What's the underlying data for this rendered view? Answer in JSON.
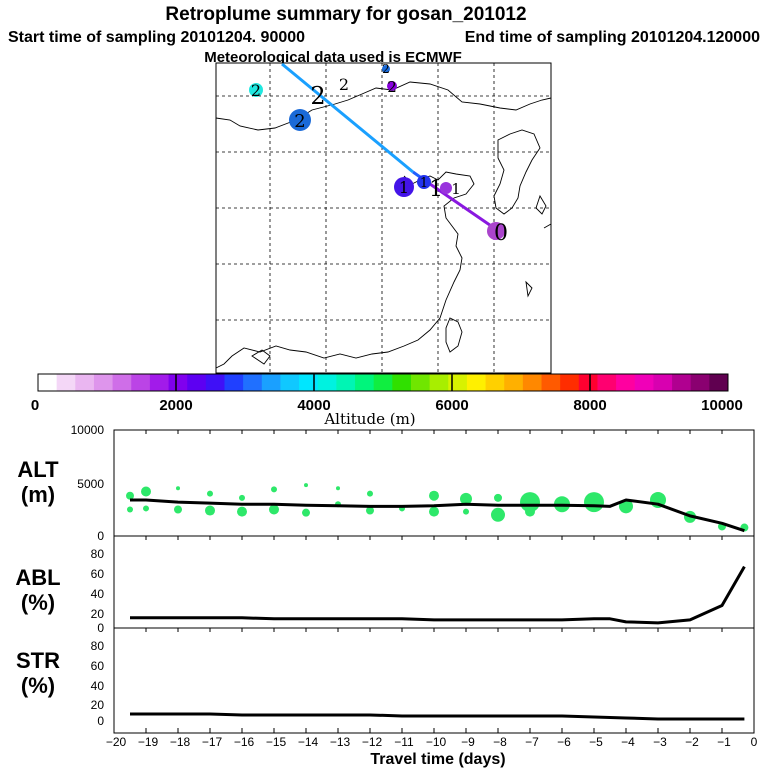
{
  "header": {
    "title": "Retroplume summary for gosan_201012",
    "start": "Start time of sampling 20101204. 90000",
    "end": "End time of sampling 20101204.120000",
    "met": "Meteorological data used is ECMWF"
  },
  "colorbar": {
    "label": "Altitude (m)",
    "ticks": [
      "0",
      "2000",
      "4000",
      "6000",
      "8000",
      "10000"
    ],
    "colors": [
      "#ffffff",
      "#f4d7f7",
      "#eab6f1",
      "#de95ec",
      "#cf6ee8",
      "#bb44e6",
      "#a21bea",
      "#8000ee",
      "#5d00f2",
      "#3f10f7",
      "#2040ff",
      "#2070ff",
      "#1aa0ff",
      "#10c8ff",
      "#00e6ff",
      "#00f2e0",
      "#00f5b4",
      "#00f57c",
      "#10ee40",
      "#30e000",
      "#70e600",
      "#a8ee00",
      "#d8f200",
      "#fff000",
      "#ffd000",
      "#ffb000",
      "#ff8800",
      "#ff5a00",
      "#ff2d00",
      "#ff0030",
      "#ff0070",
      "#ff00a0",
      "#f000b8",
      "#d800b0",
      "#b00090",
      "#8a0070",
      "#600050"
    ]
  },
  "map": {
    "cluster_labels": [
      {
        "text": "2",
        "color": "#20e8e0"
      },
      {
        "text": "2",
        "color": "#000000"
      },
      {
        "text": "2",
        "color": "#000000"
      },
      {
        "text": "2",
        "color": "#1a6ad8"
      },
      {
        "text": "2",
        "color": "#8800dd"
      },
      {
        "text": "2",
        "color": "#1a6ad8"
      },
      {
        "text": "1",
        "color": "#4414e8"
      },
      {
        "text": "1",
        "color": "#000000"
      },
      {
        "text": "1",
        "color": "#2233ee"
      },
      {
        "text": "1",
        "color": "#9933dd"
      },
      {
        "text": "0",
        "color": "#aa44cc"
      }
    ]
  },
  "panels": {
    "alt": {
      "label": "ALT",
      "unit": "(m)",
      "yticks": [
        "10000",
        "5000",
        "0"
      ]
    },
    "abl": {
      "label": "ABL",
      "unit": "(%)",
      "yticks": [
        "80",
        "60",
        "40",
        "20",
        "0"
      ]
    },
    "str": {
      "label": "STR",
      "unit": "(%)",
      "yticks": [
        "80",
        "60",
        "40",
        "20",
        "0"
      ]
    }
  },
  "xaxis": {
    "label": "Travel time (days)",
    "ticks": [
      "−20",
      "−19",
      "−18",
      "−17",
      "−16",
      "−15",
      "−14",
      "−13",
      "−12",
      "−11",
      "−10",
      "−9",
      "−8",
      "−7",
      "−6",
      "−5",
      "−4",
      "−3",
      "−2",
      "−1",
      "0"
    ]
  },
  "chart_data": [
    {
      "type": "line",
      "title": "ALT",
      "ylabel": "(m)",
      "xlabel": "Travel time (days)",
      "xlim": [
        -20,
        0
      ],
      "ylim": [
        0,
        10000
      ],
      "x": [
        -19.5,
        -19,
        -18,
        -17,
        -16,
        -15,
        -14,
        -13,
        -12,
        -11,
        -10,
        -9,
        -8,
        -7,
        -6,
        -5,
        -4.5,
        -4,
        -3,
        -2,
        -1,
        -0.3
      ],
      "series": [
        {
          "name": "mean altitude",
          "values": [
            3400,
            3400,
            3200,
            3100,
            3000,
            3000,
            2900,
            2850,
            2800,
            2800,
            2850,
            3000,
            2900,
            2900,
            2900,
            2850,
            2800,
            3400,
            3000,
            1900,
            1200,
            500
          ]
        }
      ],
      "clusters": {
        "x": [
          -19.5,
          -19.5,
          -19,
          -19,
          -18,
          -18,
          -17,
          -17,
          -16,
          -16,
          -15,
          -15,
          -14,
          -14,
          -13,
          -13,
          -12,
          -12,
          -11,
          -10,
          -10,
          -9,
          -9,
          -8,
          -8,
          -7,
          -7,
          -6,
          -5,
          -4,
          -3,
          -2,
          -1,
          -0.3
        ],
        "y": [
          3800,
          2500,
          4200,
          2600,
          4500,
          2500,
          4000,
          2400,
          3600,
          2300,
          4400,
          2500,
          4800,
          2200,
          4500,
          3000,
          4000,
          2400,
          2600,
          3800,
          2300,
          3500,
          2300,
          3600,
          2000,
          3200,
          2300,
          3000,
          3200,
          2800,
          3400,
          1800,
          900,
          800
        ],
        "size": [
          4,
          3,
          5,
          3,
          2,
          4,
          3,
          5,
          3,
          5,
          3,
          5,
          2,
          4,
          2,
          3,
          3,
          4,
          3,
          5,
          5,
          6,
          3,
          4,
          7,
          10,
          5,
          8,
          10,
          7,
          8,
          6,
          4,
          4
        ]
      }
    },
    {
      "type": "line",
      "title": "ABL",
      "ylabel": "(%)",
      "xlabel": "Travel time (days)",
      "xlim": [
        -20,
        0
      ],
      "ylim": [
        0,
        90
      ],
      "x": [
        -19.5,
        -18,
        -17,
        -16,
        -15,
        -14,
        -13,
        -12,
        -11,
        -10,
        -9,
        -8,
        -7,
        -6,
        -5,
        -4.5,
        -4,
        -3,
        -2,
        -1,
        -0.3
      ],
      "series": [
        {
          "name": "ABL",
          "values": [
            10,
            10,
            10,
            10,
            9,
            9,
            9,
            9,
            9,
            8,
            8,
            8,
            8,
            8,
            9,
            9,
            6,
            5,
            8,
            22,
            60
          ]
        }
      ]
    },
    {
      "type": "line",
      "title": "STR",
      "ylabel": "(%)",
      "xlabel": "Travel time (days)",
      "xlim": [
        -20,
        0
      ],
      "ylim": [
        0,
        90
      ],
      "x": [
        -19.5,
        -18,
        -17,
        -16,
        -15,
        -14,
        -13,
        -12,
        -11,
        -10,
        -9,
        -8,
        -7,
        -6,
        -5,
        -4,
        -3,
        -2,
        -1,
        -0.3
      ],
      "series": [
        {
          "name": "STR",
          "values": [
            5,
            5,
            5,
            4,
            4,
            4,
            4,
            4,
            3,
            3,
            3,
            3,
            3,
            3,
            2,
            1,
            0,
            0,
            0,
            0
          ]
        }
      ]
    }
  ]
}
